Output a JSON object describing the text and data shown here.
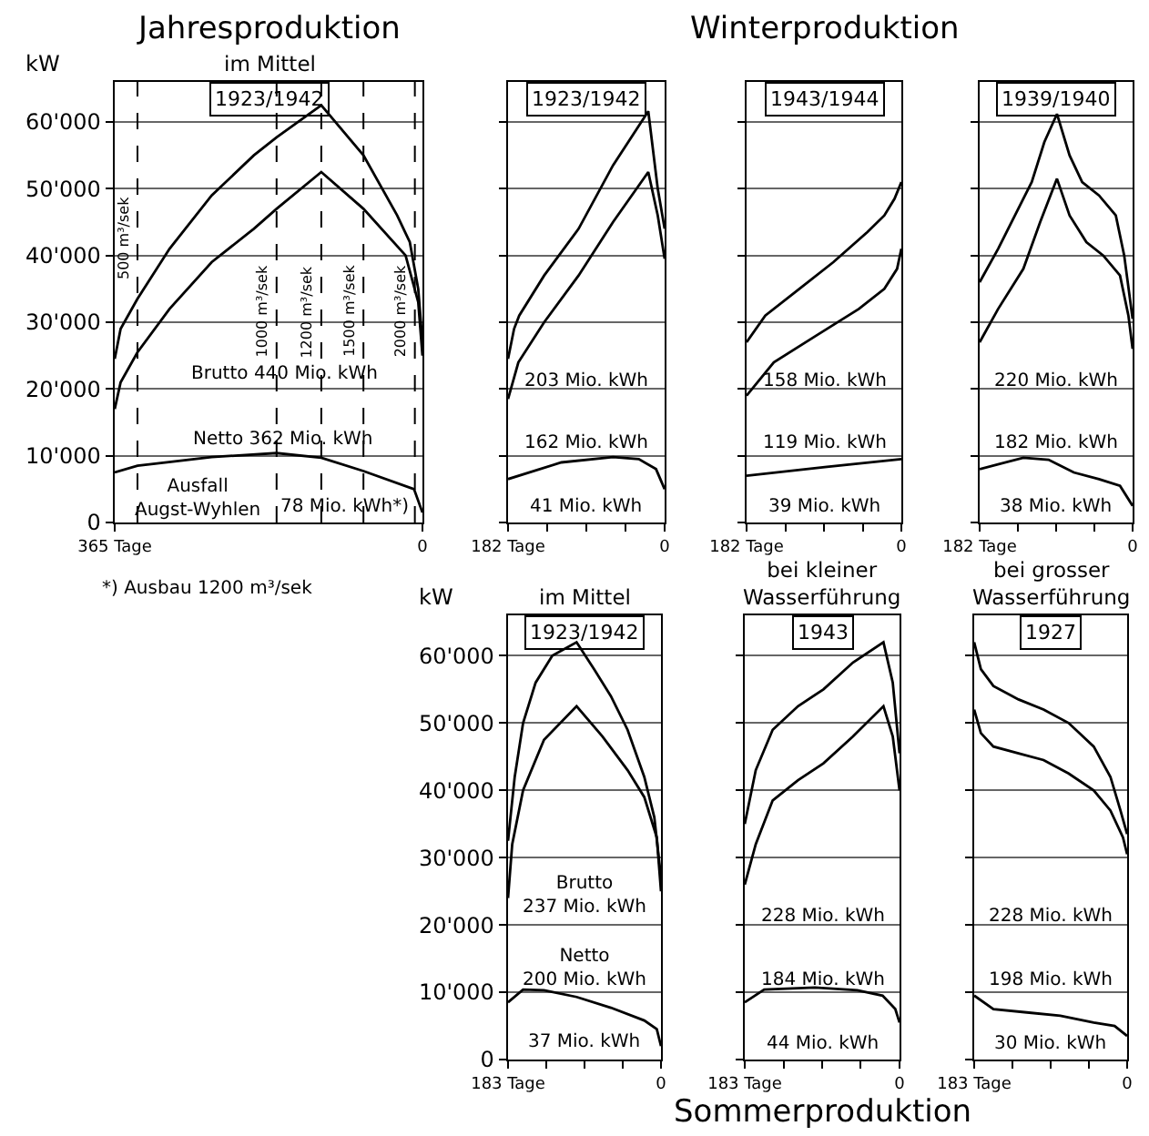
{
  "chart_data": [
    {
      "type": "line",
      "title": "Jahresproduktion",
      "subtitle": "im Mittel",
      "ylabel": "kW",
      "xlim": [
        365,
        0
      ],
      "xticks": [
        {
          "value": 365,
          "label": "365 Tage"
        },
        0
      ],
      "ylim": [
        0,
        66000
      ],
      "yticks": [
        0,
        {
          "value": 10000,
          "label": "10'000"
        },
        {
          "value": 20000,
          "label": "20'000"
        },
        {
          "value": 30000,
          "label": "30'000"
        },
        {
          "value": 40000,
          "label": "40'000"
        },
        {
          "value": 50000,
          "label": "50'000"
        },
        {
          "value": 60000,
          "label": "60'000"
        }
      ],
      "grid": "y",
      "line_style": "solid",
      "series": [
        {
          "color": "#000000",
          "x": [
            365,
            358,
            338,
            300,
            250,
            200,
            173,
            120,
            70,
            30,
            15,
            5,
            0
          ],
          "values": [
            24500,
            29000,
            33500,
            41000,
            49000,
            55000,
            57700,
            62500,
            55000,
            46000,
            42000,
            35000,
            27000
          ]
        },
        {
          "color": "#000000",
          "x": [
            365,
            358,
            338,
            300,
            250,
            200,
            173,
            120,
            70,
            20,
            5,
            0
          ],
          "values": [
            17000,
            21000,
            25500,
            32000,
            39000,
            44000,
            47000,
            52500,
            47000,
            40000,
            33000,
            25000
          ]
        },
        {
          "color": "#000000",
          "x": [
            365,
            338,
            250,
            173,
            120,
            70,
            10,
            0
          ],
          "values": [
            7500,
            8500,
            9800,
            10400,
            9700,
            7700,
            5000,
            1500
          ]
        }
      ],
      "ref_lines": [
        {
          "axis": "x",
          "value": 338,
          "label": "500 m³/sek",
          "line_style": "dashed"
        },
        {
          "axis": "x",
          "value": 173,
          "label": "1000 m³/sek",
          "line_style": "dashed"
        },
        {
          "axis": "x",
          "value": 120,
          "label": "1200 m³/sek",
          "line_style": "dashed"
        },
        {
          "axis": "x",
          "value": 70,
          "label": "1500 m³/sek",
          "line_style": "dashed"
        },
        {
          "axis": "x",
          "value": 9,
          "label": "2000 m³/sek",
          "line_style": "dashed"
        }
      ],
      "annotations": [
        "1923/1942",
        "Brutto 440 Mio. kWh",
        "Netto 362 Mio. kWh",
        "Ausfall\nAugst-Wyhlen",
        "78 Mio. kWh*)",
        "*) Ausbau 1200 m³/sek"
      ]
    },
    {
      "type": "line",
      "xlim": [
        182,
        0
      ],
      "xticks": [
        {
          "value": 182,
          "label": "182 Tage"
        },
        {
          "value": 136,
          "label": null
        },
        {
          "value": 91,
          "label": null
        },
        {
          "value": 45,
          "label": null
        },
        0
      ],
      "ylim": [
        0,
        66000
      ],
      "yticks": [
        {
          "value": 0,
          "label": null
        },
        {
          "value": 10000,
          "label": null
        },
        {
          "value": 20000,
          "label": null
        },
        {
          "value": 30000,
          "label": null
        },
        {
          "value": 40000,
          "label": null
        },
        {
          "value": 50000,
          "label": null
        },
        {
          "value": 60000,
          "label": null
        }
      ],
      "grid": "y",
      "tick_labels": "x",
      "line_style": "solid",
      "series": [
        {
          "color": "#000000",
          "x": [
            182,
            175,
            169,
            140,
            100,
            60,
            19,
            8,
            0
          ],
          "values": [
            24500,
            29000,
            31000,
            37000,
            44000,
            53500,
            61600,
            50000,
            44000
          ]
        },
        {
          "color": "#000000",
          "x": [
            182,
            170,
            140,
            100,
            60,
            19,
            8,
            0
          ],
          "values": [
            18500,
            24000,
            30000,
            37000,
            45000,
            52500,
            46000,
            39500
          ]
        },
        {
          "color": "#000000",
          "x": [
            182,
            120,
            60,
            30,
            10,
            0
          ],
          "values": [
            6500,
            9000,
            9800,
            9500,
            8000,
            5000
          ]
        }
      ],
      "annotations": [
        "1923/1942",
        "203 Mio. kWh",
        "162 Mio. kWh",
        "41 Mio. kWh"
      ]
    },
    {
      "type": "line",
      "title": "Winterproduktion",
      "xlim": [
        182,
        0
      ],
      "xticks": [
        {
          "value": 182,
          "label": "182 Tage"
        },
        {
          "value": 136,
          "label": null
        },
        {
          "value": 91,
          "label": null
        },
        {
          "value": 45,
          "label": null
        },
        0
      ],
      "ylim": [
        0,
        66000
      ],
      "yticks": [
        {
          "value": 0,
          "label": null
        },
        {
          "value": 10000,
          "label": null
        },
        {
          "value": 20000,
          "label": null
        },
        {
          "value": 30000,
          "label": null
        },
        {
          "value": 40000,
          "label": null
        },
        {
          "value": 50000,
          "label": null
        },
        {
          "value": 60000,
          "label": null
        }
      ],
      "grid": "y",
      "tick_labels": "x",
      "line_style": "solid",
      "series": [
        {
          "color": "#000000",
          "x": [
            182,
            160,
            120,
            80,
            40,
            20,
            8,
            0
          ],
          "values": [
            27000,
            31000,
            35000,
            39000,
            43500,
            46000,
            48500,
            51000
          ]
        },
        {
          "color": "#000000",
          "x": [
            182,
            150,
            100,
            50,
            20,
            5,
            0
          ],
          "values": [
            19000,
            24000,
            28000,
            32000,
            35000,
            38000,
            41000
          ]
        },
        {
          "color": "#000000",
          "x": [
            182,
            90,
            0
          ],
          "values": [
            7000,
            8300,
            9500
          ]
        }
      ],
      "annotations": [
        "1943/1944",
        "158 Mio. kWh",
        "119 Mio. kWh",
        "39 Mio. kWh"
      ]
    },
    {
      "type": "line",
      "xlim": [
        182,
        0
      ],
      "xticks": [
        {
          "value": 182,
          "label": "182 Tage"
        },
        {
          "value": 136,
          "label": null
        },
        {
          "value": 91,
          "label": null
        },
        {
          "value": 45,
          "label": null
        },
        0
      ],
      "ylim": [
        0,
        66000
      ],
      "yticks": [
        {
          "value": 0,
          "label": null
        },
        {
          "value": 10000,
          "label": null
        },
        {
          "value": 20000,
          "label": null
        },
        {
          "value": 30000,
          "label": null
        },
        {
          "value": 40000,
          "label": null
        },
        {
          "value": 50000,
          "label": null
        },
        {
          "value": 60000,
          "label": null
        }
      ],
      "grid": "y",
      "tick_labels": "x",
      "line_style": "solid",
      "series": [
        {
          "color": "#000000",
          "x": [
            182,
            160,
            140,
            120,
            105,
            90,
            75,
            60,
            40,
            20,
            10,
            0
          ],
          "values": [
            36000,
            41000,
            46000,
            51000,
            57000,
            61200,
            55000,
            51000,
            49000,
            46000,
            40000,
            30500
          ]
        },
        {
          "color": "#000000",
          "x": [
            182,
            160,
            130,
            110,
            90,
            75,
            55,
            35,
            15,
            5,
            0
          ],
          "values": [
            27000,
            32000,
            38000,
            45000,
            51500,
            46000,
            42000,
            40000,
            37000,
            31000,
            26000
          ]
        },
        {
          "color": "#000000",
          "x": [
            182,
            130,
            100,
            70,
            40,
            15,
            0
          ],
          "values": [
            8000,
            9700,
            9400,
            7500,
            6500,
            5500,
            2500
          ]
        }
      ],
      "annotations": [
        "1939/1940",
        "220 Mio. kWh",
        "182 Mio. kWh",
        "38 Mio. kWh"
      ]
    },
    {
      "type": "line",
      "subtitle": "im Mittel",
      "ylabel": "kW",
      "xlim": [
        183,
        0
      ],
      "xticks": [
        {
          "value": 183,
          "label": "183 Tage"
        },
        {
          "value": 137,
          "label": null
        },
        {
          "value": 91,
          "label": null
        },
        {
          "value": 46,
          "label": null
        },
        0
      ],
      "ylim": [
        0,
        66000
      ],
      "yticks": [
        0,
        {
          "value": 10000,
          "label": "10'000"
        },
        {
          "value": 20000,
          "label": "20'000"
        },
        {
          "value": 30000,
          "label": "30'000"
        },
        {
          "value": 40000,
          "label": "40'000"
        },
        {
          "value": 50000,
          "label": "50'000"
        },
        {
          "value": 60000,
          "label": "60'000"
        }
      ],
      "grid": "y",
      "line_style": "solid",
      "series": [
        {
          "color": "#000000",
          "x": [
            183,
            175,
            165,
            150,
            130,
            101,
            80,
            60,
            40,
            20,
            8,
            0
          ],
          "values": [
            32500,
            42000,
            50000,
            56000,
            60000,
            62000,
            58000,
            54000,
            49000,
            42000,
            36000,
            27000
          ]
        },
        {
          "color": "#000000",
          "x": [
            183,
            178,
            165,
            140,
            101,
            70,
            40,
            20,
            5,
            0
          ],
          "values": [
            24000,
            32000,
            40000,
            47500,
            52500,
            48000,
            43000,
            39000,
            33000,
            25000
          ]
        },
        {
          "color": "#000000",
          "x": [
            183,
            165,
            140,
            101,
            60,
            20,
            5,
            0
          ],
          "values": [
            8500,
            10400,
            10300,
            9300,
            7700,
            5800,
            4500,
            2000
          ]
        }
      ],
      "annotations": [
        "1923/1942",
        "Brutto\n237 Mio. kWh",
        "Netto\n200 Mio. kWh",
        "37 Mio. kWh"
      ]
    },
    {
      "type": "line",
      "title": "Sommerproduktion",
      "subtitle": "bei kleiner\nWasserführung",
      "xlim": [
        183,
        0
      ],
      "xticks": [
        {
          "value": 183,
          "label": "183 Tage"
        },
        {
          "value": 137,
          "label": null
        },
        {
          "value": 91,
          "label": null
        },
        {
          "value": 46,
          "label": null
        },
        0
      ],
      "ylim": [
        0,
        66000
      ],
      "yticks": [
        {
          "value": 0,
          "label": null
        },
        {
          "value": 10000,
          "label": null
        },
        {
          "value": 20000,
          "label": null
        },
        {
          "value": 30000,
          "label": null
        },
        {
          "value": 40000,
          "label": null
        },
        {
          "value": 50000,
          "label": null
        },
        {
          "value": 60000,
          "label": null
        }
      ],
      "grid": "y",
      "tick_labels": "x",
      "line_style": "solid",
      "series": [
        {
          "color": "#000000",
          "x": [
            183,
            170,
            150,
            120,
            90,
            55,
            19,
            8,
            0
          ],
          "values": [
            35000,
            43000,
            49000,
            52500,
            55000,
            59000,
            62000,
            56000,
            45500
          ]
        },
        {
          "color": "#000000",
          "x": [
            183,
            170,
            150,
            120,
            90,
            55,
            19,
            8,
            0
          ],
          "values": [
            26000,
            32000,
            38500,
            41500,
            44000,
            48000,
            52500,
            48000,
            40000
          ]
        },
        {
          "color": "#000000",
          "x": [
            183,
            160,
            100,
            50,
            20,
            5,
            0
          ],
          "values": [
            8500,
            10400,
            10700,
            10300,
            9500,
            7500,
            5500
          ]
        }
      ],
      "annotations": [
        "1943",
        "228 Mio. kWh",
        "184 Mio. kWh",
        "44 Mio. kWh"
      ]
    },
    {
      "type": "line",
      "subtitle": "bei grosser\nWasserführung",
      "xlim": [
        183,
        0
      ],
      "xticks": [
        {
          "value": 183,
          "label": "183 Tage"
        },
        {
          "value": 137,
          "label": null
        },
        {
          "value": 91,
          "label": null
        },
        {
          "value": 46,
          "label": null
        },
        0
      ],
      "ylim": [
        0,
        66000
      ],
      "yticks": [
        {
          "value": 0,
          "label": null
        },
        {
          "value": 10000,
          "label": null
        },
        {
          "value": 20000,
          "label": null
        },
        {
          "value": 30000,
          "label": null
        },
        {
          "value": 40000,
          "label": null
        },
        {
          "value": 50000,
          "label": null
        },
        {
          "value": 60000,
          "label": null
        }
      ],
      "grid": "y",
      "tick_labels": "x",
      "line_style": "solid",
      "series": [
        {
          "color": "#000000",
          "x": [
            183,
            175,
            160,
            130,
            100,
            70,
            40,
            20,
            8,
            0
          ],
          "values": [
            62000,
            58000,
            55500,
            53500,
            52000,
            50000,
            46500,
            42000,
            37000,
            33500
          ]
        },
        {
          "color": "#000000",
          "x": [
            183,
            175,
            160,
            130,
            100,
            70,
            40,
            20,
            5,
            0
          ],
          "values": [
            52000,
            48500,
            46500,
            45500,
            44500,
            42500,
            40000,
            37000,
            33000,
            30500
          ]
        },
        {
          "color": "#000000",
          "x": [
            183,
            160,
            120,
            80,
            40,
            15,
            0
          ],
          "values": [
            9500,
            7500,
            7000,
            6500,
            5500,
            5000,
            3500
          ]
        }
      ],
      "annotations": [
        "1927",
        "228 Mio. kWh",
        "198 Mio. kWh",
        "30 Mio. kWh"
      ]
    }
  ]
}
